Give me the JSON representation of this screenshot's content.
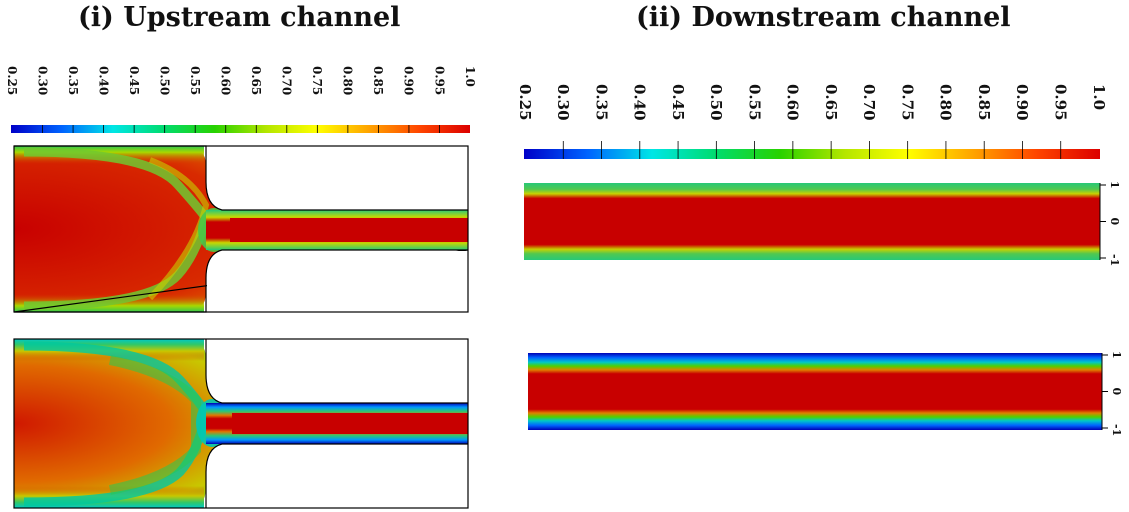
{
  "panels": {
    "upstream": {
      "title": "(i) Upstream channel"
    },
    "downstream": {
      "title": "(ii) Downstream channel"
    }
  },
  "colorbar": {
    "stops": [
      "#0000c8",
      "#0064ff",
      "#00e6e6",
      "#00dc6e",
      "#28d200",
      "#b4e600",
      "#ffff00",
      "#ffa500",
      "#ff4600",
      "#dc0000"
    ],
    "upstream_ticks": [
      "0.25",
      "0.30",
      "0.35",
      "0.40",
      "0.45",
      "0.50",
      "0.55",
      "0.60",
      "0.65",
      "0.70",
      "0.75",
      "0.80",
      "0.85",
      "0.90",
      "0.95",
      "1.0"
    ],
    "downstream_ticks": [
      "0.25",
      "0.30",
      "0.35",
      "0.40",
      "0.45",
      "0.50",
      "0.55",
      "0.60",
      "0.65",
      "0.70",
      "0.75",
      "0.80",
      "0.85",
      "0.90",
      "0.95",
      "1.0"
    ]
  },
  "downstream_axis_ticks": [
    "1",
    "0",
    "-1"
  ],
  "colors": {
    "red": "#c80000",
    "orange": "#e06a00",
    "yellow": "#d8c800",
    "green": "#28c828",
    "cyan": "#00c8c8",
    "blue": "#0000b4"
  }
}
